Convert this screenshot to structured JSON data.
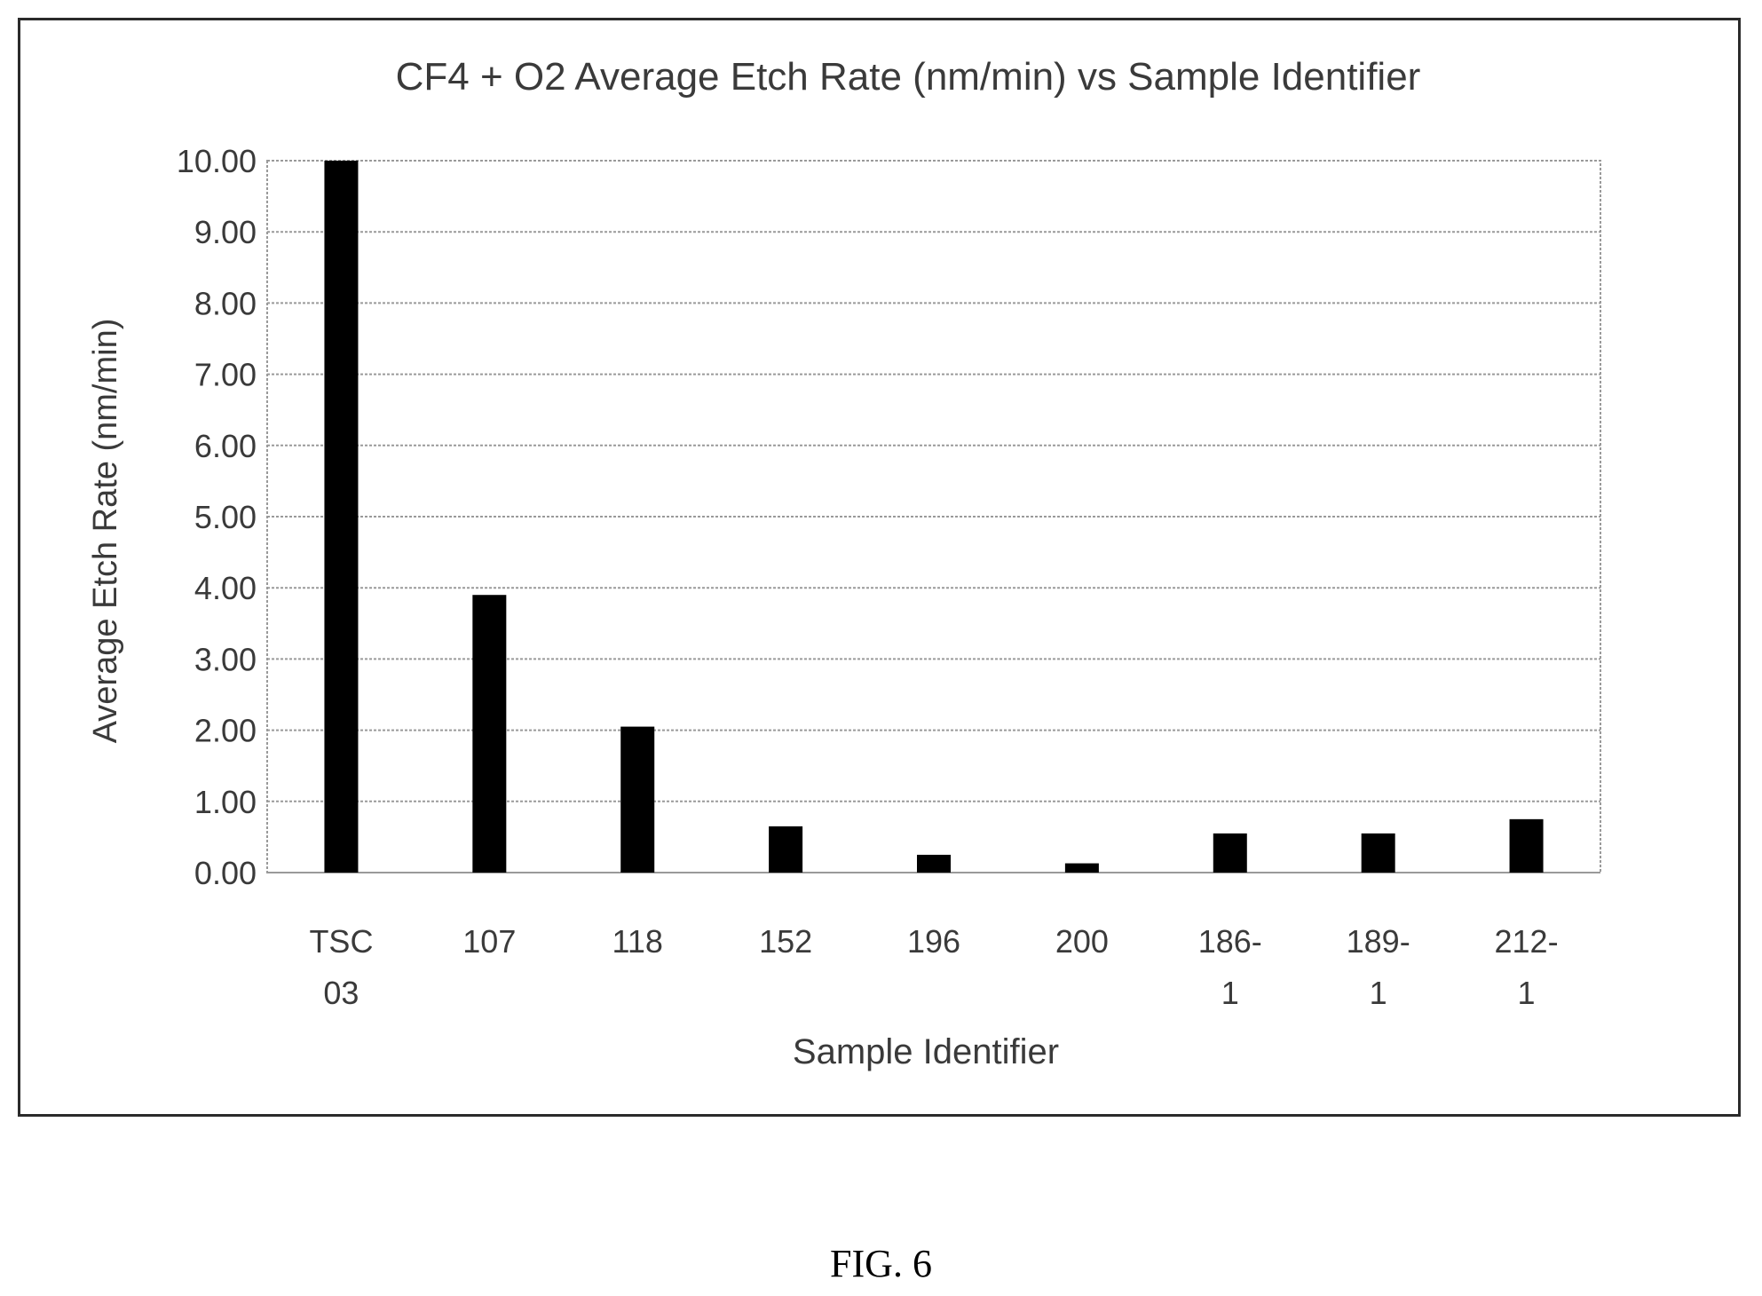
{
  "figure_caption": "FIG. 6",
  "chart_data": {
    "type": "bar",
    "title": "CF4 + O2 Average Etch Rate (nm/min) vs Sample Identifier",
    "xlabel": "Sample Identifier",
    "ylabel": "Average Etch Rate (nm/min)",
    "categories": [
      [
        "TSC",
        "03"
      ],
      [
        "107"
      ],
      [
        "118"
      ],
      [
        "152"
      ],
      [
        "196"
      ],
      [
        "200"
      ],
      [
        "186-",
        "1"
      ],
      [
        "189-",
        "1"
      ],
      [
        "212-",
        "1"
      ]
    ],
    "values": [
      10.0,
      3.9,
      2.05,
      0.65,
      0.25,
      0.13,
      0.55,
      0.55,
      0.75
    ],
    "ylim": [
      0,
      10
    ],
    "yticks": [
      "0.00",
      "1.00",
      "2.00",
      "3.00",
      "4.00",
      "5.00",
      "6.00",
      "7.00",
      "8.00",
      "9.00",
      "10.00"
    ],
    "grid": true,
    "legend": "none",
    "colors": {
      "bar": "#000000",
      "grid": "#9a9a9a",
      "text": "#3a3a3a"
    }
  }
}
